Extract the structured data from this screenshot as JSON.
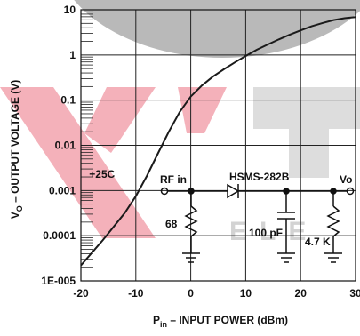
{
  "chart_data": {
    "type": "line",
    "xlabel": {
      "main": "P",
      "sub": "in",
      "rest": " – INPUT POWER (dBm)"
    },
    "ylabel": {
      "main": "V",
      "sub": "O",
      "rest": " – OUTPUT VOLTAGE (V)"
    },
    "xlim": [
      -20,
      30
    ],
    "ylim": [
      1e-05,
      10
    ],
    "y_scale": "log",
    "grid": true,
    "x_ticks": [
      {
        "value": -20,
        "label": "-20"
      },
      {
        "value": -10,
        "label": "-10"
      },
      {
        "value": 0,
        "label": "0"
      },
      {
        "value": 10,
        "label": "10"
      },
      {
        "value": 20,
        "label": "20"
      },
      {
        "value": 30,
        "label": "30"
      }
    ],
    "y_ticks": [
      {
        "value": 10,
        "label": "10"
      },
      {
        "value": 1,
        "label": "1"
      },
      {
        "value": 0.1,
        "label": "0.1"
      },
      {
        "value": 0.01,
        "label": "0.01"
      },
      {
        "value": 0.001,
        "label": "0.001"
      },
      {
        "value": 0.0001,
        "label": "0.0001"
      },
      {
        "value": 1e-05,
        "label": "1E-005"
      }
    ],
    "series": [
      {
        "name": "+25C",
        "x": [
          -20,
          -18,
          -16,
          -14,
          -12,
          -10,
          -8,
          -6,
          -4,
          -2,
          0,
          2,
          4,
          6,
          8,
          10,
          12,
          14,
          16,
          18,
          20,
          22,
          24,
          26,
          28,
          30
        ],
        "y": [
          2.2e-05,
          4.2e-05,
          8e-05,
          0.00016,
          0.00032,
          0.00075,
          0.0021,
          0.0065,
          0.02,
          0.055,
          0.12,
          0.21,
          0.33,
          0.48,
          0.68,
          0.95,
          1.3,
          1.7,
          2.2,
          2.8,
          3.5,
          4.3,
          5.1,
          5.9,
          6.5,
          6.9
        ]
      }
    ],
    "annotations": [
      {
        "text": "+25C",
        "x": -18.5,
        "y": 0.0019
      }
    ],
    "colors": {
      "line": "#1a1a1a",
      "grid": "#222222",
      "watermark": "#e0505a",
      "watermark_gray": "#9a9a9a"
    }
  },
  "inset_circuit": {
    "rf_in_label": "RF in",
    "diode_label": "HSMS-282B",
    "vo_label": "Vo",
    "resistor_in_label": "68",
    "capacitor_label": "100 pF",
    "resistor_load_label": "4.7 K"
  },
  "watermark": {
    "logo_text": "KYTEL",
    "sub_text": "ELE"
  }
}
